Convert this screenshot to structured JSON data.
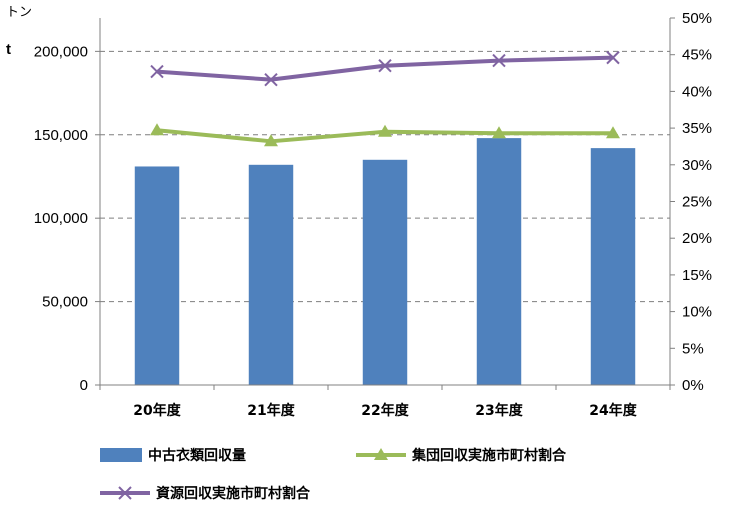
{
  "chart_data": {
    "type": "bar",
    "categories": [
      "20年度",
      "21年度",
      "22年度",
      "23年度",
      "24年度"
    ],
    "y_unit_label": "トン",
    "y_unit_symbol": "t",
    "ylim": [
      0,
      220000
    ],
    "y_ticks": [
      0,
      50000,
      100000,
      150000,
      200000
    ],
    "y_tick_labels": [
      "0",
      "50,000",
      "100,000",
      "150,000",
      "200,000"
    ],
    "y2lim": [
      0,
      50
    ],
    "y2_ticks": [
      0,
      5,
      10,
      15,
      20,
      25,
      30,
      35,
      40,
      45,
      50
    ],
    "y2_tick_labels": [
      "0%",
      "5%",
      "10%",
      "15%",
      "20%",
      "25%",
      "30%",
      "35%",
      "40%",
      "45%",
      "50%"
    ],
    "grid": true,
    "legend_position": "bottom",
    "series": [
      {
        "name": "中古衣類回収量",
        "type": "bar",
        "axis": "left",
        "values": [
          131000,
          132000,
          135000,
          148000,
          142000
        ],
        "color": "#4F81BD"
      },
      {
        "name": "集団回収実施市町村割合",
        "type": "line",
        "axis": "right",
        "marker": "triangle",
        "values": [
          34.7,
          33.2,
          34.5,
          34.3,
          34.3
        ],
        "color": "#9BBB59"
      },
      {
        "name": "資源回収実施市町村割合",
        "type": "line",
        "axis": "right",
        "marker": "x",
        "values": [
          42.7,
          41.6,
          43.5,
          44.2,
          44.6
        ],
        "color": "#8064A2"
      }
    ]
  }
}
